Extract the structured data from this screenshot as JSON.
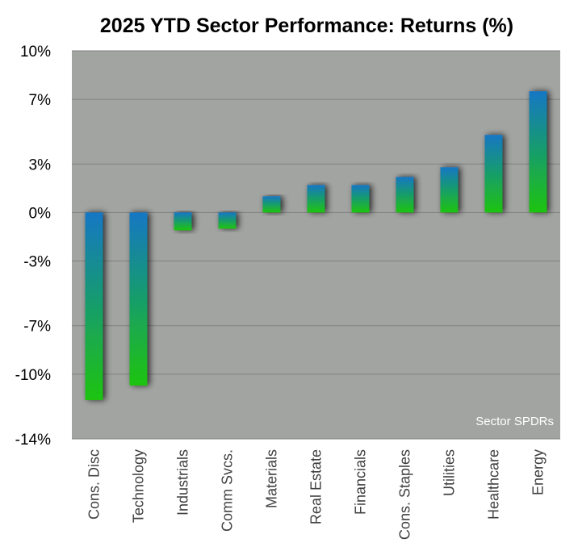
{
  "chart_data": {
    "type": "bar",
    "title": "2025 YTD Sector Performance: Returns (%)",
    "source_note": "Sector SPDRs",
    "categories": [
      "Cons. Disc",
      "Technology",
      "Industrials",
      "Comm Svcs.",
      "Materials",
      "Real Estate",
      "Financials",
      "Cons. Staples",
      "Utilities",
      "Healthcare",
      "Energy"
    ],
    "values": [
      -11.6,
      -10.7,
      -1.1,
      -1.0,
      1.0,
      1.7,
      1.7,
      2.2,
      2.8,
      4.8,
      7.5
    ],
    "ylim": [
      -14,
      10
    ],
    "yticks": [
      10,
      7,
      3,
      0,
      -3,
      -7,
      -10,
      -14
    ],
    "ytick_labels": [
      "10%",
      "7%",
      "3%",
      "0%",
      "-3%",
      "-7%",
      "-10%",
      "-14%"
    ],
    "xlabel": "",
    "ylabel": "",
    "grid": true,
    "legend": "none",
    "colors": {
      "plot_background": "#a2a4a2",
      "gridline": "#808080",
      "bar_gradient_top": "#1377c4",
      "bar_gradient_bottom": "#1ec40f",
      "bar_shadow": "#000000",
      "source_text": "#ffffff"
    }
  }
}
